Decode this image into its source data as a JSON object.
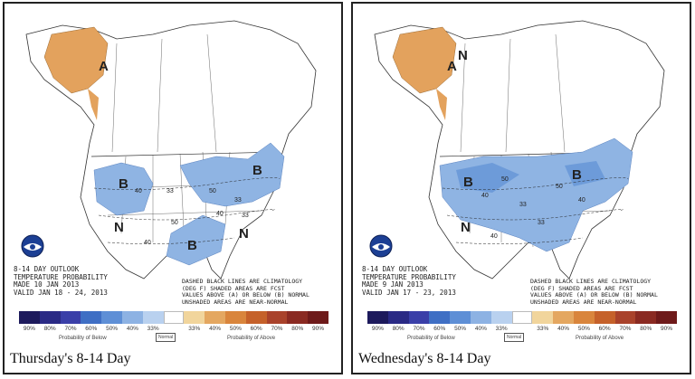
{
  "colors": {
    "below": [
      "#1d1a5c",
      "#2a2a85",
      "#3a3fa8",
      "#3f6fc4",
      "#5e8fd6",
      "#8db2e3",
      "#b9d1ef"
    ],
    "normal": "#ffffff",
    "above": [
      "#f1d59c",
      "#e4a760",
      "#d9853c",
      "#c5612a",
      "#a9422b",
      "#8a2a22",
      "#6e1a1a"
    ],
    "below_fill": "#8fb4e3",
    "below_fill_dark": "#6d9bd9",
    "above_fill": "#e3a25d"
  },
  "legend": {
    "labels": [
      "90%",
      "80%",
      "70%",
      "60%",
      "50%",
      "40%",
      "33%",
      "",
      "33%",
      "40%",
      "50%",
      "60%",
      "70%",
      "80%",
      "90%"
    ],
    "below_text": "Probability of Below",
    "normal_text": "Normal",
    "above_text": "Probability of Above"
  },
  "panels": [
    {
      "caption": "Thursday's 8-14 Day",
      "outlook_lines": [
        "8-14 DAY OUTLOOK",
        "TEMPERATURE PROBABILITY",
        "MADE 10 JAN 2013",
        "VALID JAN 18 - 24, 2013"
      ],
      "note_lines": [
        "DASHED BLACK LINES ARE CLIMATOLOGY",
        "(DEG F) SHADED AREAS ARE FCST",
        "VALUES ABOVE (A) OR BELOW (B) NORMAL",
        "UNSHADED AREAS ARE NEAR-NORMAL"
      ],
      "letters": [
        {
          "text": "B",
          "cat": "below"
        },
        {
          "text": "B",
          "cat": "below"
        },
        {
          "text": "B",
          "cat": "below"
        },
        {
          "text": "N",
          "cat": "normal"
        },
        {
          "text": "N",
          "cat": "normal"
        },
        {
          "text": "A",
          "cat": "above"
        }
      ],
      "contour_labels": [
        "40",
        "33",
        "50",
        "33",
        "40",
        "50",
        "33",
        "40"
      ]
    },
    {
      "caption": "Wednesday's 8-14 Day",
      "outlook_lines": [
        "8-14 DAY OUTLOOK",
        "TEMPERATURE PROBABILITY",
        "MADE 9 JAN 2013",
        "VALID JAN 17 - 23, 2013"
      ],
      "note_lines": [
        "DASHED BLACK LINES ARE CLIMATOLOGY",
        "(DEG F) SHADED AREAS ARE FCST",
        "VALUES ABOVE (A) OR BELOW (B) NORMAL",
        "UNSHADED AREAS ARE NEAR-NORMAL"
      ],
      "letters": [
        {
          "text": "B",
          "cat": "below"
        },
        {
          "text": "B",
          "cat": "below"
        },
        {
          "text": "N",
          "cat": "normal"
        },
        {
          "text": "N",
          "cat": "normal"
        },
        {
          "text": "A",
          "cat": "above"
        }
      ],
      "contour_labels": [
        "40",
        "50",
        "33",
        "50",
        "40",
        "33",
        "40"
      ]
    }
  ]
}
